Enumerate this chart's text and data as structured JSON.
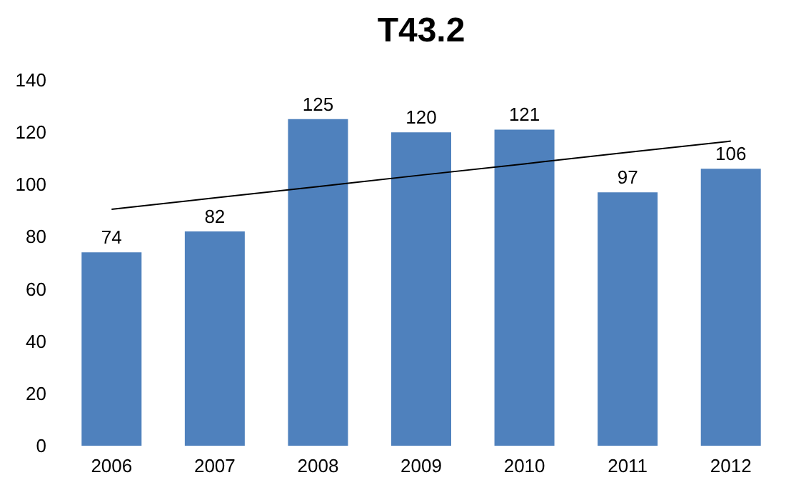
{
  "chart_data": {
    "type": "bar",
    "title": "T43.2",
    "categories": [
      "2006",
      "2007",
      "2008",
      "2009",
      "2010",
      "2011",
      "2012"
    ],
    "series": [
      {
        "color": "#4f81bd",
        "values": [
          74,
          82,
          125,
          120,
          121,
          97,
          106
        ],
        "value_labels": [
          "74",
          "82",
          "125",
          "120",
          "121",
          "97",
          "106"
        ]
      },
      {
        "type": "line",
        "color": "#000000",
        "values": [
          90.5,
          94.9,
          99.2,
          103.6,
          107.9,
          112.3,
          116.6
        ]
      }
    ],
    "ylim": [
      0,
      140
    ],
    "yticks": [
      0,
      20,
      40,
      60,
      80,
      100,
      120,
      140
    ],
    "grid": false
  }
}
